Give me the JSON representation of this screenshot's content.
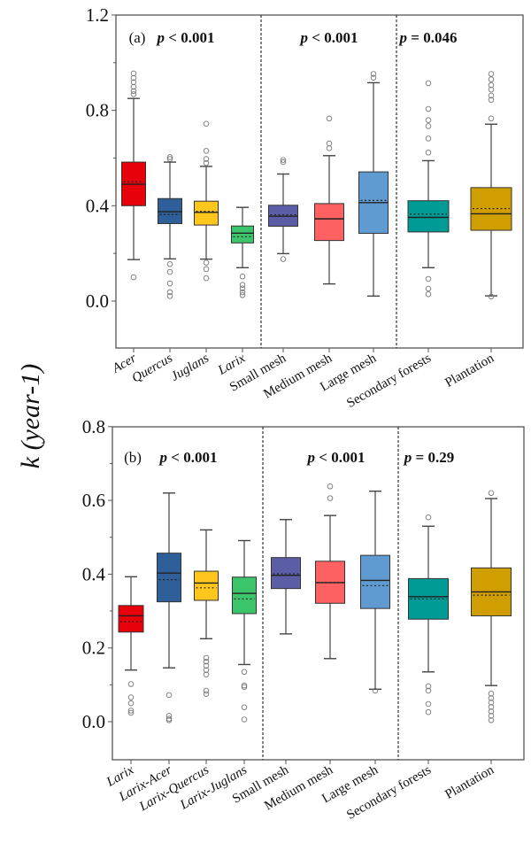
{
  "chart_data": {
    "ylabel": "k (year-1)",
    "panels": [
      {
        "type": "box",
        "panel_label": "(a)",
        "ylim": [
          -0.2,
          1.2
        ],
        "yticks": [
          "0.0",
          "0.4",
          "0.8",
          "1.2"
        ],
        "ytick_values": [
          0.0,
          0.4,
          0.8,
          1.2
        ],
        "groups": [
          {
            "p_label": "p < 0.001",
            "categories": [
              0,
              1,
              2,
              3
            ]
          },
          {
            "p_label": "p < 0.001",
            "categories": [
              4,
              5,
              6
            ]
          },
          {
            "p_label": "p = 0.046",
            "categories": [
              7,
              8
            ]
          }
        ],
        "categories": [
          {
            "label": "Acer",
            "italic": true,
            "color": "#e8000b",
            "q1": 0.4,
            "median": 0.49,
            "q3": 0.583,
            "mean": 0.5,
            "whisker_low": 0.174,
            "whisker_high": 0.85,
            "outliers": [
              0.1,
              0.868,
              0.881,
              0.899,
              0.918,
              0.936,
              0.955
            ]
          },
          {
            "label": "Quercus",
            "italic": true,
            "color": "#2e5f98",
            "q1": 0.325,
            "median": 0.375,
            "q3": 0.43,
            "mean": 0.363,
            "whisker_low": 0.177,
            "whisker_high": 0.583,
            "outliers": [
              0.596,
              0.604,
              0.155,
              0.122,
              0.074,
              0.037,
              0.021
            ]
          },
          {
            "label": "Juglans",
            "italic": true,
            "color": "#ffc61e",
            "q1": 0.319,
            "median": 0.372,
            "q3": 0.419,
            "mean": 0.376,
            "whisker_low": 0.176,
            "whisker_high": 0.565,
            "outliers": [
              0.744,
              0.63,
              0.596,
              0.579,
              0.161,
              0.134,
              0.096
            ]
          },
          {
            "label": "Larix",
            "italic": true,
            "color": "#3cc46a",
            "q1": 0.244,
            "median": 0.285,
            "q3": 0.315,
            "mean": 0.27,
            "whisker_low": 0.14,
            "whisker_high": 0.393,
            "outliers": [
              0.103,
              0.068,
              0.053,
              0.037,
              0.025
            ]
          },
          {
            "label": "Small mesh",
            "italic": false,
            "color": "#5b5ea6",
            "q1": 0.314,
            "median": 0.356,
            "q3": 0.402,
            "mean": 0.362,
            "whisker_low": 0.199,
            "whisker_high": 0.533,
            "outliers": [
              0.592,
              0.583,
              0.176
            ]
          },
          {
            "label": "Medium mesh",
            "italic": false,
            "color": "#ff6163",
            "q1": 0.254,
            "median": 0.345,
            "q3": 0.409,
            "mean": 0.345,
            "whisker_low": 0.072,
            "whisker_high": 0.61,
            "outliers": [
              0.766,
              0.661,
              0.641
            ]
          },
          {
            "label": "Large mesh",
            "italic": false,
            "color": "#5f9bd0",
            "q1": 0.284,
            "median": 0.413,
            "q3": 0.542,
            "mean": 0.422,
            "whisker_low": 0.021,
            "whisker_high": 0.916,
            "outliers": [
              0.953,
              0.937
            ]
          },
          {
            "label": "Secondary forests",
            "italic": false,
            "color": "#009b95",
            "q1": 0.29,
            "median": 0.351,
            "q3": 0.421,
            "mean": 0.365,
            "whisker_low": 0.14,
            "whisker_high": 0.589,
            "outliers": [
              0.914,
              0.806,
              0.759,
              0.734,
              0.682,
              0.623,
              0.093,
              0.052,
              0.029
            ]
          },
          {
            "label": "Plantation",
            "italic": false,
            "color": "#d09e00",
            "q1": 0.297,
            "median": 0.366,
            "q3": 0.476,
            "mean": 0.388,
            "whisker_low": 0.022,
            "whisker_high": 0.742,
            "outliers": [
              0.766,
              0.844,
              0.862,
              0.887,
              0.906,
              0.93,
              0.953,
              0.019
            ]
          }
        ]
      },
      {
        "type": "box",
        "panel_label": "(b)",
        "ylim": [
          -0.1,
          0.8
        ],
        "yticks": [
          "0.0",
          "0.2",
          "0.4",
          "0.6",
          "0.8"
        ],
        "ytick_values": [
          0.0,
          0.2,
          0.4,
          0.6,
          0.8
        ],
        "groups": [
          {
            "p_label": "p < 0.001",
            "categories": [
              0,
              1,
              2,
              3
            ]
          },
          {
            "p_label": "p < 0.001",
            "categories": [
              4,
              5,
              6
            ]
          },
          {
            "p_label": "p = 0.29",
            "categories": [
              7,
              8
            ]
          }
        ],
        "categories": [
          {
            "label": "Larix",
            "italic": true,
            "color": "#e8000b",
            "q1": 0.243,
            "median": 0.287,
            "q3": 0.315,
            "mean": 0.271,
            "whisker_low": 0.14,
            "whisker_high": 0.393,
            "outliers": [
              0.102,
              0.066,
              0.05,
              0.03,
              0.024
            ]
          },
          {
            "label": "Larix-Acer",
            "italic": true,
            "color": "#2e5f98",
            "q1": 0.325,
            "median": 0.403,
            "q3": 0.457,
            "mean": 0.385,
            "whisker_low": 0.146,
            "whisker_high": 0.62,
            "outliers": [
              0.072,
              0.016,
              0.008,
              0.004
            ]
          },
          {
            "label": "Larix-Quercus",
            "italic": true,
            "color": "#ffc61e",
            "q1": 0.329,
            "median": 0.376,
            "q3": 0.408,
            "mean": 0.363,
            "whisker_low": 0.225,
            "whisker_high": 0.52,
            "outliers": [
              0.173,
              0.163,
              0.152,
              0.14,
              0.128,
              0.084,
              0.075
            ]
          },
          {
            "label": "Larix-Juglans",
            "italic": true,
            "color": "#3cc46a",
            "q1": 0.293,
            "median": 0.348,
            "q3": 0.392,
            "mean": 0.333,
            "whisker_low": 0.155,
            "whisker_high": 0.491,
            "outliers": [
              0.135,
              0.098,
              0.094,
              0.039,
              0.006
            ]
          },
          {
            "label": "Small mesh",
            "italic": false,
            "color": "#5b5ea6",
            "q1": 0.361,
            "median": 0.397,
            "q3": 0.445,
            "mean": 0.401,
            "whisker_low": 0.238,
            "whisker_high": 0.548,
            "outliers": []
          },
          {
            "label": "Medium mesh",
            "italic": false,
            "color": "#ff6163",
            "q1": 0.321,
            "median": 0.377,
            "q3": 0.435,
            "mean": 0.377,
            "whisker_low": 0.171,
            "whisker_high": 0.559,
            "outliers": [
              0.638,
              0.606
            ]
          },
          {
            "label": "Large mesh",
            "italic": false,
            "color": "#5f9bd0",
            "q1": 0.307,
            "median": 0.383,
            "q3": 0.451,
            "mean": 0.369,
            "whisker_low": 0.088,
            "whisker_high": 0.625,
            "outliers": [
              0.084
            ]
          },
          {
            "label": "Secondary forests",
            "italic": false,
            "color": "#009b95",
            "q1": 0.278,
            "median": 0.339,
            "q3": 0.388,
            "mean": 0.333,
            "whisker_low": 0.135,
            "whisker_high": 0.53,
            "outliers": [
              0.554,
              0.096,
              0.084,
              0.048,
              0.026
            ]
          },
          {
            "label": "Plantation",
            "italic": false,
            "color": "#d09e00",
            "q1": 0.287,
            "median": 0.352,
            "q3": 0.417,
            "mean": 0.343,
            "whisker_low": 0.098,
            "whisker_high": 0.605,
            "outliers": [
              0.62,
              0.076,
              0.064,
              0.052,
              0.04,
              0.028,
              0.016,
              0.004
            ]
          }
        ]
      }
    ]
  }
}
